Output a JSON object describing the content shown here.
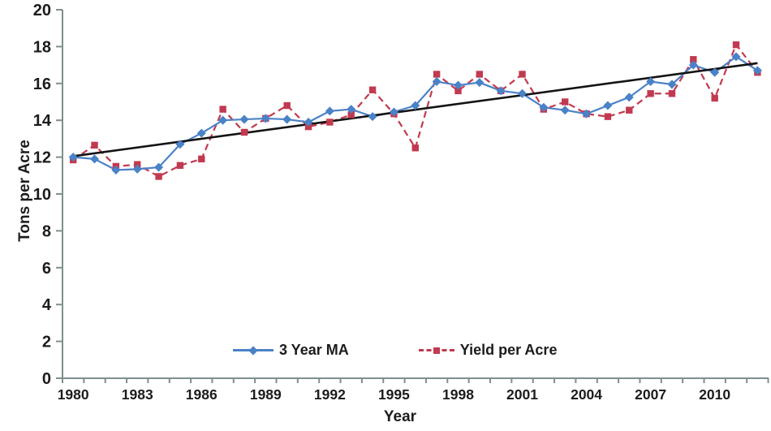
{
  "chart_data": {
    "type": "line",
    "title": "",
    "xlabel": "Year",
    "ylabel": "Tons per Acre",
    "x": [
      1980,
      1981,
      1982,
      1983,
      1984,
      1985,
      1986,
      1987,
      1988,
      1989,
      1990,
      1991,
      1992,
      1993,
      1994,
      1995,
      1996,
      1997,
      1998,
      1999,
      2000,
      2001,
      2002,
      2003,
      2004,
      2005,
      2006,
      2007,
      2008,
      2009,
      2010,
      2011,
      2012
    ],
    "xtick_labels": [
      1980,
      1983,
      1986,
      1989,
      1992,
      1995,
      1998,
      2001,
      2004,
      2007,
      2010
    ],
    "ylim": [
      0,
      20
    ],
    "ytick_step": 2,
    "grid": false,
    "legend_position": "bottom-center-inside",
    "series": [
      {
        "name": "Yield per Acre",
        "color": "#c13a50",
        "marker": "square",
        "line_style": "dashed",
        "in_legend": true,
        "values": [
          11.85,
          12.65,
          11.5,
          11.6,
          10.95,
          11.55,
          11.9,
          14.6,
          13.35,
          14.1,
          14.8,
          13.65,
          13.9,
          14.3,
          15.65,
          14.35,
          12.5,
          16.5,
          15.6,
          16.5,
          15.6,
          16.5,
          14.6,
          15.0,
          14.35,
          14.2,
          14.55,
          15.45,
          15.45,
          17.3,
          15.2,
          18.1,
          16.6
        ]
      },
      {
        "name": "3 Year MA",
        "color": "#4a82c8",
        "marker": "diamond",
        "line_style": "solid",
        "in_legend": true,
        "values": [
          12.0,
          11.9,
          11.3,
          11.35,
          11.45,
          12.7,
          13.3,
          14.0,
          14.05,
          14.1,
          14.05,
          13.9,
          14.5,
          14.6,
          14.2,
          14.45,
          14.8,
          16.1,
          15.9,
          16.05,
          15.6,
          15.45,
          14.7,
          14.55,
          14.35,
          14.8,
          15.25,
          16.1,
          15.95,
          17.0,
          16.6,
          17.45,
          16.7
        ]
      },
      {
        "name": "Linear trend",
        "color": "#141414",
        "marker": "none",
        "line_style": "solid",
        "in_legend": false,
        "trend_endpoints": [
          12.05,
          17.1
        ]
      }
    ]
  },
  "colors": {
    "axis": "#7e8f8f",
    "tick_text": "#1c1c1c",
    "background": "#ffffff"
  }
}
